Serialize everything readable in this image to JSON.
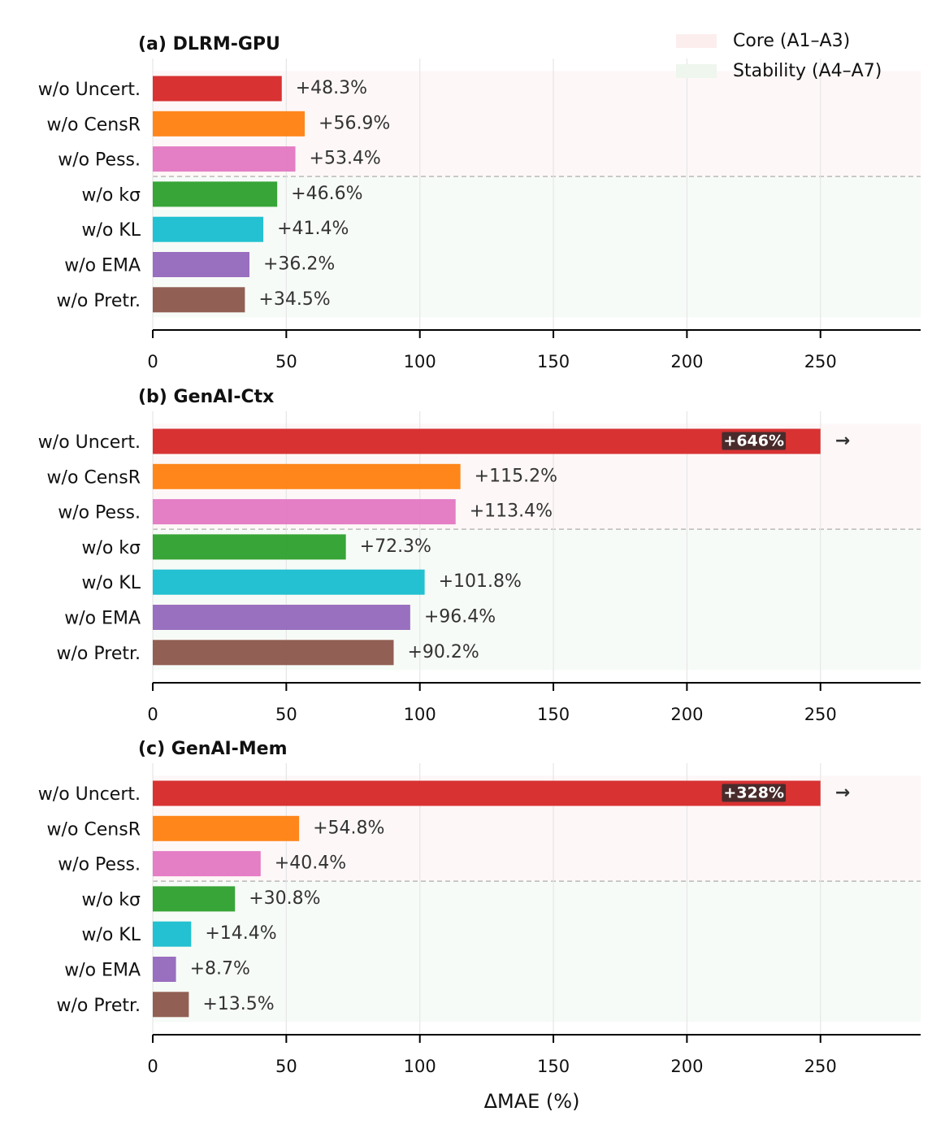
{
  "groups": [
    {
      "name": "Core (A1–A3)",
      "color": "#fdeeee",
      "size": 3
    },
    {
      "name": "Stability (A4–A7)",
      "color": "#eef6ee",
      "size": 4
    }
  ],
  "chart_data": [
    {
      "type": "bar",
      "orientation": "horizontal",
      "title": "(a) DLRM-GPU",
      "categories": [
        "w/o Uncert.",
        "w/o CensR",
        "w/o Pess.",
        "w/o kσ",
        "w/o KL",
        "w/o EMA",
        "w/o Pretr."
      ],
      "values": [
        48.3,
        56.9,
        53.4,
        46.6,
        41.4,
        36.2,
        34.5
      ],
      "value_labels": [
        "+48.3%",
        "+56.9%",
        "+53.4%",
        "+46.6%",
        "+41.4%",
        "+36.2%",
        "+34.5%"
      ],
      "colors": [
        "#d62728",
        "#ff7f0e",
        "#e377c2",
        "#2ca02c",
        "#17becf",
        "#9467bd",
        "#8c564b"
      ],
      "xlim": [
        0,
        287.5
      ],
      "xticks": [
        0,
        50,
        100,
        150,
        200,
        250
      ],
      "grid": true
    },
    {
      "type": "bar",
      "orientation": "horizontal",
      "title": "(b) GenAI-Ctx",
      "categories": [
        "w/o Uncert.",
        "w/o CensR",
        "w/o Pess.",
        "w/o kσ",
        "w/o KL",
        "w/o EMA",
        "w/o Pretr."
      ],
      "values": [
        646,
        115.2,
        113.4,
        72.3,
        101.8,
        96.4,
        90.2
      ],
      "value_labels": [
        "+646%",
        "+115.2%",
        "+113.4%",
        "+72.3%",
        "+101.8%",
        "+96.4%",
        "+90.2%"
      ],
      "colors": [
        "#d62728",
        "#ff7f0e",
        "#e377c2",
        "#2ca02c",
        "#17becf",
        "#9467bd",
        "#8c564b"
      ],
      "overflow_marker": "→",
      "xlim": [
        0,
        287.5
      ],
      "xticks": [
        0,
        50,
        100,
        150,
        200,
        250
      ],
      "grid": true
    },
    {
      "type": "bar",
      "orientation": "horizontal",
      "title": "(c) GenAI-Mem",
      "categories": [
        "w/o Uncert.",
        "w/o CensR",
        "w/o Pess.",
        "w/o kσ",
        "w/o KL",
        "w/o EMA",
        "w/o Pretr."
      ],
      "values": [
        328,
        54.8,
        40.4,
        30.8,
        14.4,
        8.7,
        13.5
      ],
      "value_labels": [
        "+328%",
        "+54.8%",
        "+40.4%",
        "+30.8%",
        "+14.4%",
        "+8.7%",
        "+13.5%"
      ],
      "colors": [
        "#d62728",
        "#ff7f0e",
        "#e377c2",
        "#2ca02c",
        "#17becf",
        "#9467bd",
        "#8c564b"
      ],
      "overflow_marker": "→",
      "xlabel": "ΔMAE (%)",
      "xlim": [
        0,
        287.5
      ],
      "xticks": [
        0,
        50,
        100,
        150,
        200,
        250
      ],
      "grid": true
    }
  ]
}
